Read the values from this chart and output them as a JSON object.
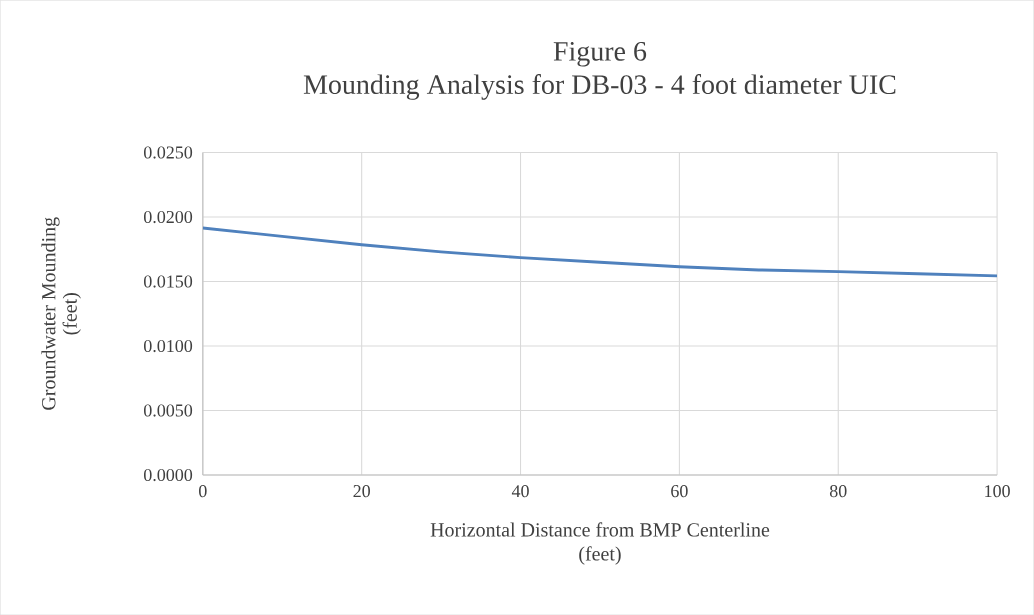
{
  "chart_data": {
    "type": "line",
    "title": "Figure 6\nMounding Analysis for DB-03 - 4 foot diameter UIC",
    "xlabel": "Horizontal Distance from BMP Centerline\n(feet)",
    "ylabel": "Groundwater Mounding\n(feet)",
    "x": [
      0,
      10,
      20,
      30,
      40,
      50,
      60,
      70,
      80,
      90,
      100
    ],
    "series": [
      {
        "color": "#4f81bd",
        "values": [
          0.01915,
          0.0185,
          0.01785,
          0.0173,
          0.01685,
          0.0165,
          0.01615,
          0.0159,
          0.01577,
          0.0156,
          0.01544
        ]
      }
    ],
    "xlim": [
      0,
      100
    ],
    "xticks": [
      0,
      20,
      40,
      60,
      80,
      100
    ],
    "ylim": [
      0,
      0.025
    ],
    "yticks": [
      {
        "value": 0,
        "label": "0.0000"
      },
      {
        "value": 0.005,
        "label": "0.0050"
      },
      {
        "value": 0.01,
        "label": "0.0100"
      },
      {
        "value": 0.015,
        "label": "0.0150"
      },
      {
        "value": 0.02,
        "label": "0.0200"
      },
      {
        "value": 0.025,
        "label": "0.0250"
      }
    ],
    "grid": true,
    "marker": "none",
    "line_style": "solid"
  }
}
